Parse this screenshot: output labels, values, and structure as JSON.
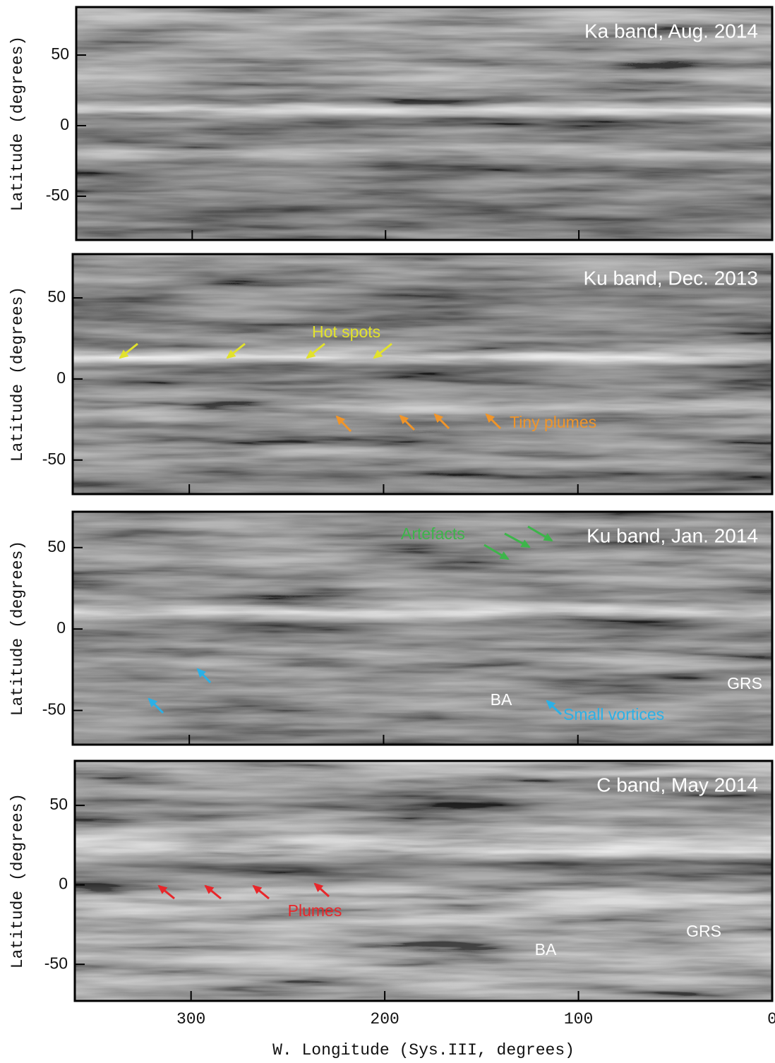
{
  "chart_data": [
    {
      "type": "image",
      "title": "Ka band, Aug. 2014",
      "ylabel": "Latitude (degrees)",
      "xlim": [
        360,
        0
      ],
      "ylim": [
        -81,
        84
      ],
      "xticks": [
        300,
        200,
        100,
        0
      ],
      "yticks": [
        -50,
        0,
        50
      ],
      "annotations": []
    },
    {
      "type": "image",
      "title": "Ku band, Dec. 2013",
      "ylabel": "Latitude (degrees)",
      "xlim": [
        360,
        0
      ],
      "ylim": [
        -71,
        77
      ],
      "xticks": [
        300,
        200,
        100,
        0
      ],
      "yticks": [
        -50,
        0,
        50
      ],
      "annotations": [
        {
          "text": "Hot spots",
          "color": "#e2e22c"
        },
        {
          "text": "Tiny plumes",
          "color": "#f0952a"
        }
      ]
    },
    {
      "type": "image",
      "title": "Ku band, Jan. 2014",
      "ylabel": "Latitude (degrees)",
      "xlim": [
        360,
        0
      ],
      "ylim": [
        -71,
        72
      ],
      "xticks": [
        300,
        200,
        100,
        0
      ],
      "yticks": [
        -50,
        0,
        50
      ],
      "annotations": [
        {
          "text": "Artefacts",
          "color": "#3db54a"
        },
        {
          "text": "Small vortices",
          "color": "#2bb0e6"
        },
        {
          "text": "BA",
          "color": "#ffffff"
        },
        {
          "text": "GRS",
          "color": "#ffffff"
        }
      ]
    },
    {
      "type": "image",
      "title": "C band, May 2014",
      "ylabel": "Latitude (degrees)",
      "xlabel": "W. Longitude (Sys.III, degrees)",
      "xlim": [
        360,
        0
      ],
      "ylim": [
        -73,
        78
      ],
      "xticks": [
        300,
        200,
        100,
        0
      ],
      "yticks": [
        -50,
        0,
        50
      ],
      "annotations": [
        {
          "text": "Plumes",
          "color": "#e8262a"
        },
        {
          "text": "BA",
          "color": "#ffffff"
        },
        {
          "text": "GRS",
          "color": "#ffffff"
        }
      ]
    }
  ]
}
